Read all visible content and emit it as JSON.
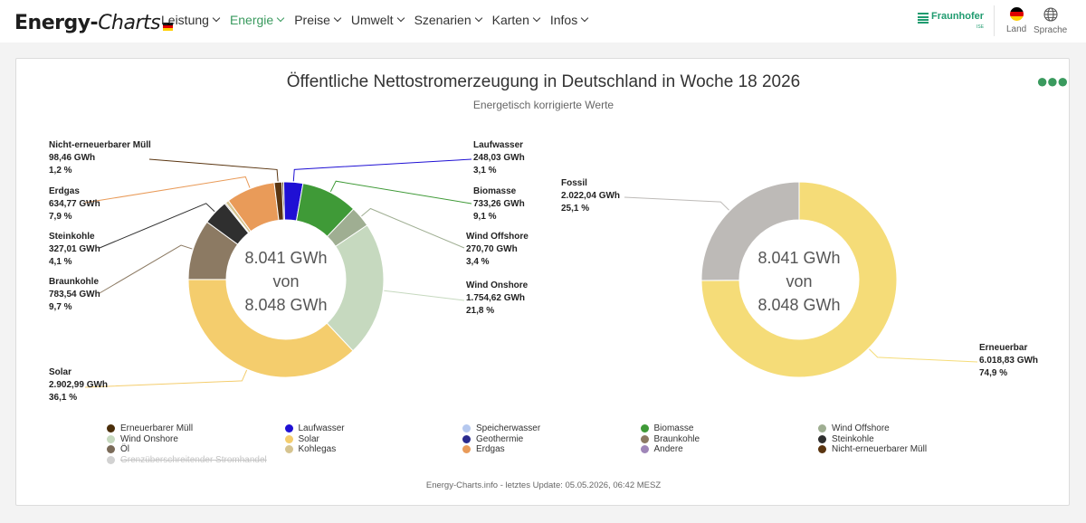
{
  "brand": {
    "part1": "Energy-",
    "part2": "Charts"
  },
  "nav": [
    {
      "label": "Leistung",
      "active": false
    },
    {
      "label": "Energie",
      "active": true
    },
    {
      "label": "Preise",
      "active": false
    },
    {
      "label": "Umwelt",
      "active": false
    },
    {
      "label": "Szenarien",
      "active": false
    },
    {
      "label": "Karten",
      "active": false
    },
    {
      "label": "Infos",
      "active": false
    }
  ],
  "fraunhofer": {
    "name": "Fraunhofer",
    "sub": "ISE"
  },
  "tools": {
    "land_label": "Land",
    "language_label": "Sprache"
  },
  "chart_title": "Öffentliche Nettostromerzeugung in Deutschland in Woche 18 2026",
  "chart_subtitle": "Energetisch korrigierte Werte",
  "footer": "Energy-Charts.info - letztes Update: 05.05.2026, 06:42 MESZ",
  "chart_data": [
    {
      "type": "pie",
      "donut": true,
      "center_text": [
        "8.041 GWh",
        "von",
        "8.048 GWh"
      ],
      "unit": "GWh",
      "slices": [
        {
          "name": "Erneuerbarer Müll",
          "value": 23.0,
          "color": "#4b2e0a",
          "label": false
        },
        {
          "name": "Laufwasser",
          "value": 248.03,
          "percent": "3,1 %",
          "value_label": "248,03 GWh",
          "color": "#1f10d4",
          "label": true
        },
        {
          "name": "Biomasse",
          "value": 733.26,
          "percent": "9,1 %",
          "value_label": "733,26 GWh",
          "color": "#3f9a37",
          "label": true
        },
        {
          "name": "Wind Offshore",
          "value": 270.7,
          "percent": "3,4 %",
          "value_label": "270,70 GWh",
          "color": "#9fae92",
          "label": true
        },
        {
          "name": "Wind Onshore",
          "value": 1754.62,
          "percent": "21,8 %",
          "value_label": "1.754,62 GWh",
          "color": "#c6d9bf",
          "label": true
        },
        {
          "name": "Solar",
          "value": 2902.99,
          "percent": "36,1 %",
          "value_label": "2.902,99 GWh",
          "color": "#f4cd6d",
          "label": true
        },
        {
          "name": "Braunkohle",
          "value": 783.54,
          "percent": "9,7 %",
          "value_label": "783,54 GWh",
          "color": "#8c7a63",
          "label": true
        },
        {
          "name": "Steinkohle",
          "value": 327.01,
          "percent": "4,1 %",
          "value_label": "327,01 GWh",
          "color": "#2f2f2f",
          "label": true
        },
        {
          "name": "Öl",
          "value": 15.0,
          "color": "#7a6a58",
          "label": false
        },
        {
          "name": "Kohlegas",
          "value": 45.0,
          "color": "#d6c490",
          "label": false
        },
        {
          "name": "Erdgas",
          "value": 634.77,
          "percent": "7,9 %",
          "value_label": "634,77 GWh",
          "color": "#e99b59",
          "label": true
        },
        {
          "name": "Nicht-erneuerbarer Müll",
          "value": 98.46,
          "percent": "1,2 %",
          "value_label": "98,46 GWh",
          "color": "#5a3510",
          "label": true
        }
      ]
    },
    {
      "type": "pie",
      "donut": true,
      "center_text": [
        "8.041 GWh",
        "von",
        "8.048 GWh"
      ],
      "unit": "GWh",
      "slices": [
        {
          "name": "Erneuerbar",
          "value": 6018.83,
          "percent": "74,9 %",
          "value_label": "6.018,83 GWh",
          "color": "#f5dc78",
          "label": true
        },
        {
          "name": "Fossil",
          "value": 2022.04,
          "percent": "25,1 %",
          "value_label": "2.022,04 GWh",
          "color": "#bdbab7",
          "label": true
        }
      ]
    }
  ],
  "legend": [
    {
      "name": "Erneuerbarer Müll",
      "color": "#4b2e0a",
      "visible": true
    },
    {
      "name": "Laufwasser",
      "color": "#1f10d4",
      "visible": true
    },
    {
      "name": "Speicherwasser",
      "color": "#b5c8ef",
      "visible": true
    },
    {
      "name": "Biomasse",
      "color": "#3f9a37",
      "visible": true
    },
    {
      "name": "Wind Offshore",
      "color": "#9fae92",
      "visible": true
    },
    {
      "name": "Wind Onshore",
      "color": "#c6d9bf",
      "visible": true
    },
    {
      "name": "Solar",
      "color": "#f4cd6d",
      "visible": true
    },
    {
      "name": "Geothermie",
      "color": "#2a2a8e",
      "visible": true
    },
    {
      "name": "Braunkohle",
      "color": "#8c7a63",
      "visible": true
    },
    {
      "name": "Steinkohle",
      "color": "#2f2f2f",
      "visible": true
    },
    {
      "name": "Öl",
      "color": "#7a6a58",
      "visible": true
    },
    {
      "name": "Kohlegas",
      "color": "#d6c490",
      "visible": true
    },
    {
      "name": "Erdgas",
      "color": "#e99b59",
      "visible": true
    },
    {
      "name": "Andere",
      "color": "#9f86b8",
      "visible": true
    },
    {
      "name": "Nicht-erneuerbarer Müll",
      "color": "#5a3510",
      "visible": true
    },
    {
      "name": "Grenzüberschreitender Stromhandel",
      "color": "#cfcfcf",
      "visible": false
    }
  ]
}
